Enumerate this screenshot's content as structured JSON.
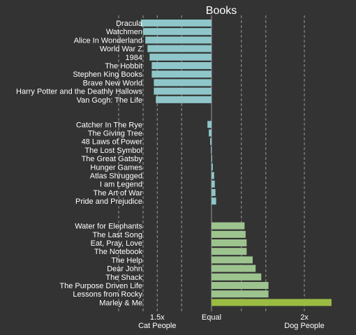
{
  "chart_data": {
    "type": "bar",
    "title": "Books",
    "colors": {
      "cat": "#8fc6c9",
      "neutral": "#8fc6c9",
      "dog": "#9dc48f",
      "highlight": "#9bbc43",
      "background": "#333333"
    },
    "axis": {
      "scale": "log",
      "ticks": [
        {
          "value": 0.667,
          "label": "1.5x",
          "sub": "Cat People"
        },
        {
          "value": 1,
          "label": "Equal",
          "sub": ""
        },
        {
          "value": 2,
          "label": "2x",
          "sub": "Dog People"
        }
      ],
      "gridlines": [
        0.5,
        0.6,
        0.667,
        0.8,
        1.25,
        1.5,
        2
      ]
    },
    "groups": [
      {
        "name": "cat",
        "items": [
          {
            "label": "Dracula",
            "value": 0.59
          },
          {
            "label": "Watchmen",
            "value": 0.6
          },
          {
            "label": "Alice In Wonderland",
            "value": 0.61
          },
          {
            "label": "World War Z",
            "value": 0.62
          },
          {
            "label": "1984",
            "value": 0.63
          },
          {
            "label": "The Hobbit",
            "value": 0.64
          },
          {
            "label": "Stephen King Books",
            "value": 0.64
          },
          {
            "label": "Brave New World",
            "value": 0.65
          },
          {
            "label": "Harry Potter and the Deathly Hallows",
            "value": 0.65
          },
          {
            "label": "Van Gogh: The Life",
            "value": 0.66
          }
        ]
      },
      {
        "name": "neutral",
        "items": [
          {
            "label": "Catcher In The Rye",
            "value": 0.97
          },
          {
            "label": "The Giving Tree",
            "value": 0.98
          },
          {
            "label": "48 Laws of Power",
            "value": 0.99
          },
          {
            "label": "The Lost Symbol",
            "value": 0.995
          },
          {
            "label": "The Great Gatsby",
            "value": 1.005
          },
          {
            "label": "Hunger Games",
            "value": 1.01
          },
          {
            "label": "Atlas Shrugged",
            "value": 1.02
          },
          {
            "label": "I am Legend",
            "value": 1.025
          },
          {
            "label": "The Art of War",
            "value": 1.03
          },
          {
            "label": "Pride and Prejudice",
            "value": 1.035
          }
        ]
      },
      {
        "name": "dog",
        "items": [
          {
            "label": "Water for Elephants",
            "value": 1.28
          },
          {
            "label": "The Last Song",
            "value": 1.29
          },
          {
            "label": "Eat, Pray, Love",
            "value": 1.3
          },
          {
            "label": "The Notebook",
            "value": 1.3
          },
          {
            "label": "The Help",
            "value": 1.36
          },
          {
            "label": "Dear John",
            "value": 1.39
          },
          {
            "label": "The Shack",
            "value": 1.45
          },
          {
            "label": "The Purpose Driven Life",
            "value": 1.53
          },
          {
            "label": "Lessons from Rocky",
            "value": 1.53
          },
          {
            "label": "Marley & Me",
            "value": 2.45,
            "highlight": true
          }
        ]
      }
    ]
  }
}
